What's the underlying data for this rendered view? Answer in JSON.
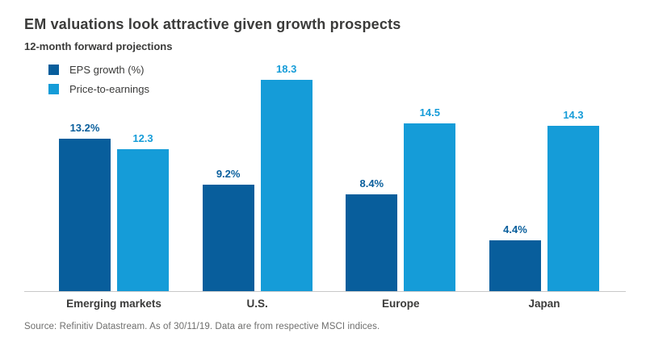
{
  "header": {
    "title": "EM valuations look attractive given growth prospects",
    "subtitle": "12-month forward projections"
  },
  "colors": {
    "eps_growth": "#085e9c",
    "price_to_earnings": "#159cd8",
    "text": "#3b3b3a",
    "axis_line": "#c9c9c9",
    "source_text": "#6e6e6d"
  },
  "chart_data": {
    "type": "bar",
    "title": "EM valuations look attractive given growth prospects",
    "subtitle": "12-month forward projections",
    "categories": [
      "Emerging markets",
      "U.S.",
      "Europe",
      "Japan"
    ],
    "series": [
      {
        "name": "EPS growth (%)",
        "color": "#085e9c",
        "values": [
          13.2,
          9.2,
          8.4,
          4.4
        ],
        "labels": [
          "13.2%",
          "9.2%",
          "8.4%",
          "4.4%"
        ]
      },
      {
        "name": "Price-to-earnings",
        "color": "#159cd8",
        "values": [
          12.3,
          18.3,
          14.5,
          14.3
        ],
        "labels": [
          "12.3",
          "18.3",
          "14.5",
          "14.3"
        ]
      }
    ],
    "ylim": [
      0,
      19.5
    ],
    "grid": false,
    "y_axis_visible": false,
    "legend_position": "top-left",
    "data_labels": "above-bars"
  },
  "footer": {
    "source": "Source: Refinitiv Datastream. As of 30/11/19. Data are from respective MSCI indices."
  }
}
